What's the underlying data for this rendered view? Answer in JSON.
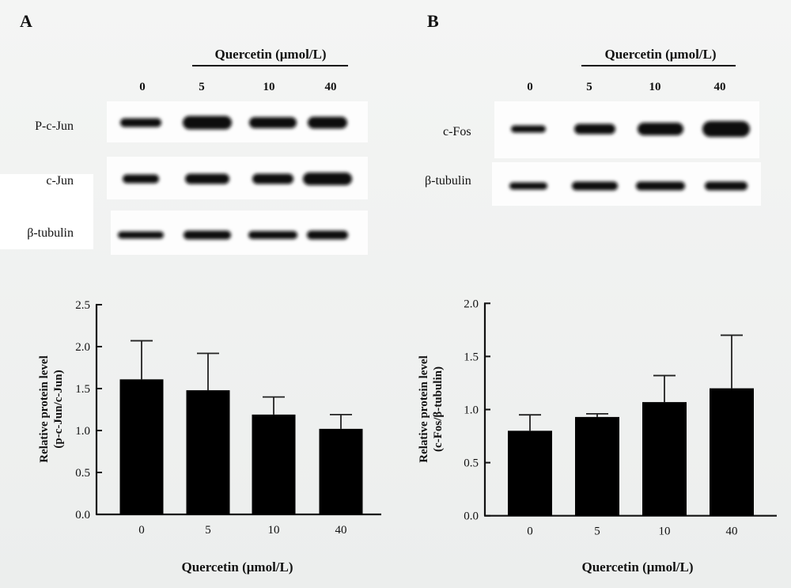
{
  "panels": [
    {
      "letter": "A",
      "treatment_header": "Quercetin (μmol/L)",
      "lanes": [
        "0",
        "5",
        "10",
        "40"
      ],
      "blot_rows": [
        "P-c-Jun",
        "c-Jun",
        "β-tubulin"
      ]
    },
    {
      "letter": "B",
      "treatment_header": "Quercetin (μmol/L)",
      "lanes": [
        "0",
        "5",
        "10",
        "40"
      ],
      "blot_rows": [
        "c-Fos",
        "β-tubulin"
      ]
    }
  ],
  "chart_data": [
    {
      "type": "bar",
      "panel": "A",
      "categories": [
        "0",
        "5",
        "10",
        "40"
      ],
      "values": [
        1.61,
        1.48,
        1.19,
        1.02
      ],
      "error_upper": [
        2.07,
        1.92,
        1.4,
        1.19
      ],
      "xlabel": "Quercetin (μmol/L)",
      "ylabel_line1": "Relative protein level",
      "ylabel_line2": "(p-c-Jun/c-Jun)",
      "ylim": [
        0,
        2.5
      ],
      "yticks": [
        "0.0",
        "0.5",
        "1.0",
        "1.5",
        "2.0",
        "2.5"
      ],
      "grid": false,
      "bar_color": "#000000"
    },
    {
      "type": "bar",
      "panel": "B",
      "categories": [
        "0",
        "5",
        "10",
        "40"
      ],
      "values": [
        0.8,
        0.93,
        1.07,
        1.2
      ],
      "error_upper": [
        0.95,
        0.96,
        1.32,
        1.7
      ],
      "xlabel": "Quercetin (μmol/L)",
      "ylabel_line1": "Relative protein level",
      "ylabel_line2": "(c-Fos/β-tubulin)",
      "ylim": [
        0,
        2.0
      ],
      "yticks": [
        "0.0",
        "0.5",
        "1.0",
        "1.5",
        "2.0"
      ],
      "grid": false,
      "bar_color": "#000000"
    }
  ]
}
